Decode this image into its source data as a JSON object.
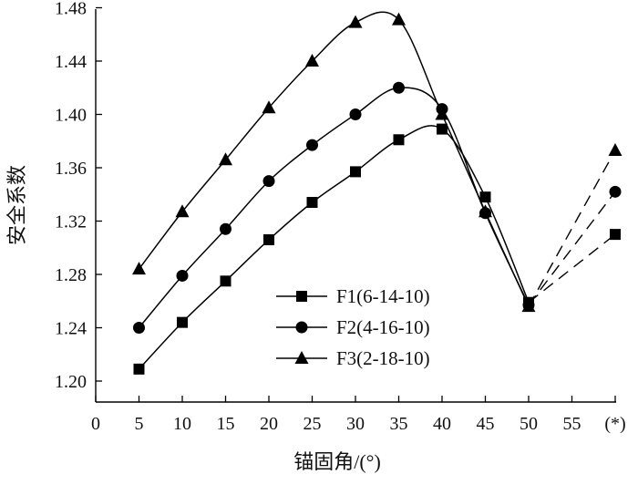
{
  "chart_data": {
    "type": "line",
    "xlabel": "锚固角/(°)",
    "ylabel": "安全系数",
    "x_ticks": [
      "0",
      "5",
      "10",
      "15",
      "20",
      "25",
      "30",
      "35",
      "40",
      "45",
      "50",
      "55",
      "(*)"
    ],
    "y_ticks": [
      "1.20",
      "1.24",
      "1.28",
      "1.32",
      "1.36",
      "1.40",
      "1.44",
      "1.48"
    ],
    "xlim": [
      0,
      60
    ],
    "ylim": [
      1.19,
      1.48
    ],
    "grid": false,
    "legend_position": "lower-center",
    "series": [
      {
        "name": "F1(6-14-10)",
        "marker": "square",
        "x": [
          5,
          10,
          15,
          20,
          25,
          30,
          35,
          40,
          45,
          50
        ],
        "y": [
          1.209,
          1.244,
          1.275,
          1.306,
          1.334,
          1.357,
          1.381,
          1.389,
          1.338,
          1.259
        ],
        "extra_x": "(*)",
        "extra_y": 1.31
      },
      {
        "name": "F2(4-16-10)",
        "marker": "circle",
        "x": [
          5,
          10,
          15,
          20,
          25,
          30,
          35,
          40,
          45,
          50
        ],
        "y": [
          1.24,
          1.279,
          1.314,
          1.35,
          1.377,
          1.4,
          1.42,
          1.404,
          1.326,
          1.257
        ],
        "extra_x": "(*)",
        "extra_y": 1.342
      },
      {
        "name": "F3(2-18-10)",
        "marker": "triangle",
        "x": [
          5,
          10,
          15,
          20,
          25,
          30,
          35,
          40,
          45,
          50
        ],
        "y": [
          1.284,
          1.327,
          1.366,
          1.405,
          1.44,
          1.469,
          1.471,
          1.4,
          1.327,
          1.256
        ],
        "extra_x": "(*)",
        "extra_y": 1.373
      }
    ]
  }
}
